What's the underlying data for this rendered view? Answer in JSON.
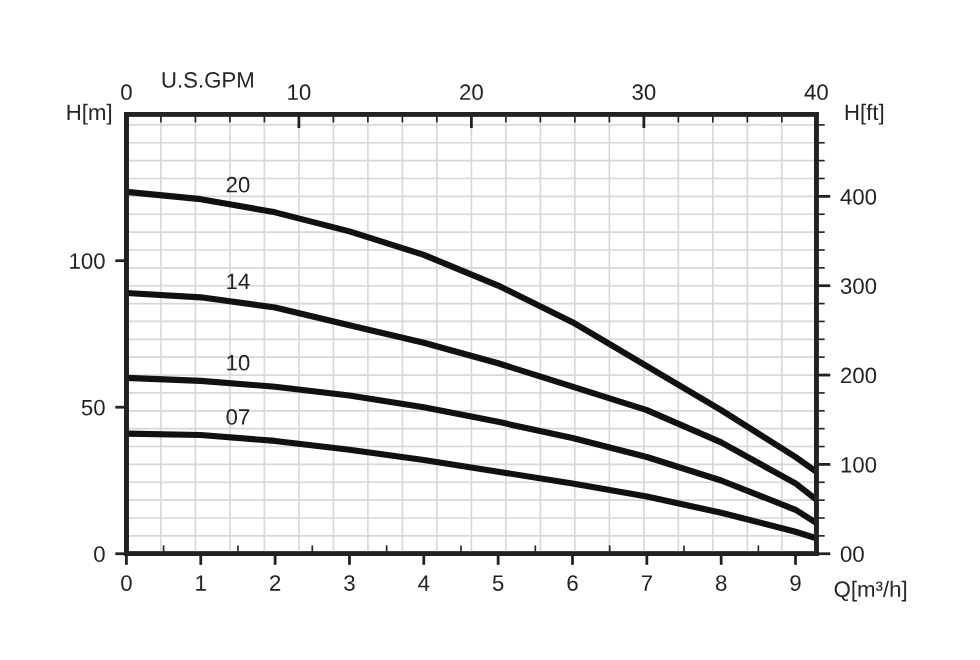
{
  "chart_data": {
    "type": "line",
    "xlabel": "Q[m³/h]",
    "ylabel": "H[m]",
    "y2label": "H[ft]",
    "x2label": "U.S.GPM",
    "x": [
      0,
      1,
      2,
      3,
      4,
      5,
      6,
      7,
      8,
      9,
      9.28
    ],
    "series": [
      {
        "name": "20",
        "color": "#111111",
        "values": [
          123.5,
          121,
          116.5,
          110,
          102,
          91.5,
          79,
          64,
          49,
          33,
          28
        ]
      },
      {
        "name": "14",
        "color": "#111111",
        "values": [
          89,
          87.5,
          84,
          78,
          72,
          65,
          57,
          49,
          38,
          24,
          18.5
        ]
      },
      {
        "name": "10",
        "color": "#111111",
        "values": [
          60,
          59,
          57,
          54,
          50,
          45,
          39.5,
          33,
          25,
          15,
          10.5
        ]
      },
      {
        "name": "07",
        "color": "#111111",
        "values": [
          41,
          40.5,
          38.5,
          35.5,
          32,
          28,
          24,
          19.5,
          14,
          7.5,
          5.3
        ]
      }
    ],
    "xlim": [
      0,
      9.28
    ],
    "xticks": [
      0,
      1,
      2,
      3,
      4,
      5,
      6,
      7,
      8,
      9
    ],
    "ylim": [
      0,
      150
    ],
    "yticks": [
      0,
      50,
      100
    ],
    "x2lim": [
      0,
      40
    ],
    "x2ticks": [
      0,
      10,
      20,
      30,
      40
    ],
    "y2lim": [
      0,
      492
    ],
    "y2ticks": [
      {
        "value": 0,
        "label": "00"
      },
      100,
      200,
      300,
      400
    ],
    "grid": true,
    "legend": false,
    "marker": "none",
    "line_style": "solid"
  }
}
